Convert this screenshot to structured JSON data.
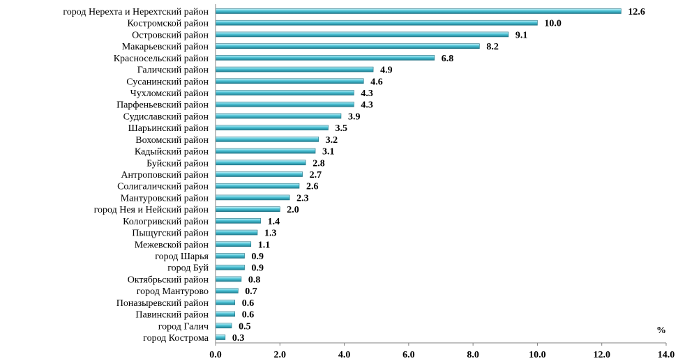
{
  "chart_data": {
    "type": "bar",
    "orientation": "horizontal",
    "categories": [
      "город Нерехта и Нерехтский район",
      "Костромской район",
      "Островский район",
      "Макарьевский район",
      "Красносельский район",
      "Галичский район",
      "Сусанинский район",
      "Чухломский район",
      "Парфеньевский район",
      "Судиславский район",
      "Шарьинский район",
      "Вохомский район",
      "Кадыйский район",
      "Буйский район",
      "Антроповский район",
      "Солигаличский район",
      "Мантуровский район",
      "город Нея и Нейский район",
      "Кологривский район",
      "Пыщугский район",
      "Межевской район",
      "город Шарья",
      "город Буй",
      "Октябрьский район",
      "город Мантурово",
      "Поназыревский район",
      "Павинский район",
      "город Галич",
      "город Кострома"
    ],
    "values": [
      12.6,
      10.0,
      9.1,
      8.2,
      6.8,
      4.9,
      4.6,
      4.3,
      4.3,
      3.9,
      3.5,
      3.2,
      3.1,
      2.8,
      2.7,
      2.6,
      2.3,
      2.0,
      1.4,
      1.3,
      1.1,
      0.9,
      0.9,
      0.8,
      0.7,
      0.6,
      0.6,
      0.5,
      0.3
    ],
    "value_labels": [
      "12.6",
      "10.0",
      "9.1",
      "8.2",
      "6.8",
      "4.9",
      "4.6",
      "4.3",
      "4.3",
      "3.9",
      "3.5",
      "3.2",
      "3.1",
      "2.8",
      "2.7",
      "2.6",
      "2.3",
      "2.0",
      "1.4",
      "1.3",
      "1.1",
      "0.9",
      "0.9",
      "0.8",
      "0.7",
      "0.6",
      "0.6",
      "0.5",
      "0.3"
    ],
    "x_ticks": [
      "0.0",
      "2.0",
      "4.0",
      "6.0",
      "8.0",
      "10.0",
      "12.0",
      "14.0"
    ],
    "xlim": [
      0,
      14
    ],
    "unit": "%",
    "grid": false,
    "legend": "none",
    "bar_color": "#4dc3d6",
    "bar_edge_color": "#1f6f80"
  }
}
